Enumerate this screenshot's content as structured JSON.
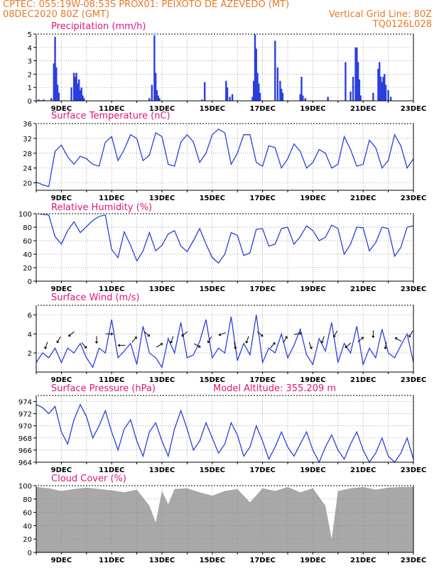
{
  "header": {
    "left_line1": "CPTEC:   055:19W-08:53S   PROX01: PEIXOTO DE AZEVEDO (MT)",
    "left_line2": "08DEC2020 80Z (GMT)",
    "right_line2": "Vertical Grid Line: 80Z",
    "right_line3": "TQ0126L028"
  },
  "colors": {
    "header": "#e8782a",
    "title": "#e0157a",
    "line": "#2b3fe0",
    "bar": "#2b3fe0",
    "cloud": "#a8a8a8",
    "grid": "#888888"
  },
  "chart_data": [
    {
      "type": "bar",
      "title": "Precipitation (mm/h)",
      "xlabel": "",
      "ylabel": "",
      "xlim": [
        "08DEC",
        "23DEC"
      ],
      "ylim": [
        0,
        5
      ],
      "yticks": [
        0,
        1,
        2,
        3,
        4,
        5
      ],
      "xticks": [
        "9DEC",
        "11DEC",
        "13DEC",
        "15DEC",
        "17DEC",
        "19DEC",
        "21DEC",
        "23DEC"
      ],
      "grid": true,
      "x_days": [
        8.1,
        8.2,
        8.3,
        8.6,
        8.7,
        8.75,
        8.8,
        8.85,
        8.9,
        9.4,
        9.5,
        9.55,
        9.6,
        9.65,
        9.7,
        9.75,
        9.8,
        9.85,
        9.9,
        12.5,
        12.6,
        12.7,
        12.75,
        12.8,
        12.85,
        12.9,
        14.6,
        14.7,
        15.55,
        15.6,
        15.7,
        15.8,
        16.6,
        16.65,
        16.7,
        16.75,
        16.8,
        16.85,
        16.9,
        17.5,
        17.6,
        17.7,
        17.75,
        17.8,
        18.5,
        18.55,
        18.6,
        18.7,
        19.6,
        20.3,
        20.5,
        20.6,
        20.7,
        20.75,
        20.8,
        20.85,
        20.9,
        21.4,
        21.6,
        21.65,
        21.7,
        21.75,
        21.8,
        21.85,
        21.9,
        22.0,
        22.1
      ],
      "values": [
        0.1,
        0.05,
        0.1,
        0.2,
        2.8,
        4.8,
        2.5,
        1.2,
        0.6,
        1.0,
        2.1,
        1.8,
        2.1,
        1.3,
        1.6,
        0.8,
        1.0,
        0.4,
        0.2,
        0.2,
        1.2,
        4.9,
        2.1,
        0.8,
        0.4,
        0.2,
        0.1,
        1.4,
        1.5,
        1.0,
        0.3,
        0.5,
        0.3,
        1.5,
        5.0,
        3.9,
        2.1,
        1.3,
        0.6,
        4.5,
        2.5,
        1.5,
        0.9,
        0.6,
        0.5,
        1.8,
        0.4,
        0.2,
        0.3,
        2.9,
        0.7,
        1.8,
        4.0,
        4.0,
        2.9,
        1.6,
        0.4,
        0.6,
        2.4,
        2.9,
        1.8,
        1.4,
        1.8,
        2.0,
        1.2,
        0.8,
        0.3
      ]
    },
    {
      "type": "line",
      "title": "Surface Temperature (nC)",
      "xlabel": "",
      "ylabel": "",
      "xlim": [
        "08DEC",
        "23DEC"
      ],
      "ylim": [
        18,
        36
      ],
      "yticks": [
        20,
        24,
        28,
        32,
        36
      ],
      "xticks": [
        "9DEC",
        "11DEC",
        "13DEC",
        "15DEC",
        "17DEC",
        "19DEC",
        "21DEC",
        "23DEC"
      ],
      "grid": true,
      "x_days": [
        8.0,
        8.25,
        8.5,
        8.75,
        9.0,
        9.25,
        9.5,
        9.75,
        10.0,
        10.25,
        10.5,
        10.75,
        11.0,
        11.25,
        11.5,
        11.75,
        12.0,
        12.25,
        12.5,
        12.75,
        13.0,
        13.25,
        13.5,
        13.75,
        14.0,
        14.25,
        14.5,
        14.75,
        15.0,
        15.25,
        15.5,
        15.75,
        16.0,
        16.25,
        16.5,
        16.75,
        17.0,
        17.25,
        17.5,
        17.75,
        18.0,
        18.25,
        18.5,
        18.75,
        19.0,
        19.25,
        19.5,
        19.75,
        20.0,
        20.25,
        20.5,
        20.75,
        21.0,
        21.25,
        21.5,
        21.75,
        22.0,
        22.25,
        22.5,
        22.75,
        23.0
      ],
      "series": [
        {
          "values": [
            20.2,
            19.5,
            19.0,
            28.5,
            30.2,
            27.0,
            25.0,
            27.2,
            26.5,
            25.0,
            24.5,
            31.0,
            32.5,
            26.0,
            29.0,
            33.0,
            32.0,
            26.0,
            27.5,
            33.5,
            32.5,
            25.0,
            24.5,
            31.0,
            33.0,
            31.0,
            25.5,
            28.0,
            33.0,
            34.5,
            33.5,
            25.0,
            28.0,
            33.0,
            33.0,
            25.5,
            24.5,
            30.0,
            29.5,
            24.0,
            26.5,
            30.5,
            28.5,
            24.0,
            25.5,
            29.0,
            28.0,
            24.0,
            25.0,
            32.5,
            29.0,
            24.5,
            25.0,
            31.5,
            29.5,
            24.0,
            26.0,
            33.0,
            30.0,
            24.0,
            26.5
          ]
        }
      ]
    },
    {
      "type": "line",
      "title": "Relative Humidity (%)",
      "xlabel": "",
      "ylabel": "",
      "xlim": [
        "08DEC",
        "23DEC"
      ],
      "ylim": [
        0,
        100
      ],
      "yticks": [
        0,
        20,
        40,
        60,
        80,
        100
      ],
      "xticks": [
        "9DEC",
        "11DEC",
        "13DEC",
        "15DEC",
        "17DEC",
        "19DEC",
        "21DEC",
        "23DEC"
      ],
      "grid": true,
      "x_days": [
        8.0,
        8.25,
        8.5,
        8.75,
        9.0,
        9.25,
        9.5,
        9.75,
        10.0,
        10.25,
        10.5,
        10.75,
        11.0,
        11.25,
        11.5,
        11.75,
        12.0,
        12.25,
        12.5,
        12.75,
        13.0,
        13.25,
        13.5,
        13.75,
        14.0,
        14.25,
        14.5,
        14.75,
        15.0,
        15.25,
        15.5,
        15.75,
        16.0,
        16.25,
        16.5,
        16.75,
        17.0,
        17.25,
        17.5,
        17.75,
        18.0,
        18.25,
        18.5,
        18.75,
        19.0,
        19.25,
        19.5,
        19.75,
        20.0,
        20.25,
        20.5,
        20.75,
        21.0,
        21.25,
        21.5,
        21.75,
        22.0,
        22.25,
        22.5,
        22.75,
        23.0
      ],
      "series": [
        {
          "values": [
            100,
            99,
            98,
            66,
            55,
            75,
            88,
            72,
            81,
            90,
            96,
            98,
            47,
            35,
            73,
            53,
            30,
            45,
            72,
            45,
            53,
            70,
            75,
            52,
            44,
            60,
            78,
            55,
            35,
            27,
            40,
            72,
            68,
            38,
            42,
            77,
            78,
            52,
            55,
            78,
            80,
            55,
            66,
            82,
            75,
            60,
            65,
            83,
            78,
            40,
            55,
            80,
            79,
            45,
            57,
            80,
            78,
            37,
            50,
            80,
            82
          ]
        }
      ]
    },
    {
      "type": "line",
      "title": "Surface Wind (m/s)",
      "xlabel": "",
      "ylabel": "",
      "xlim": [
        "08DEC",
        "23DEC"
      ],
      "ylim": [
        0,
        7
      ],
      "yticks": [
        2,
        4,
        6
      ],
      "xticks": [
        "9DEC",
        "11DEC",
        "13DEC",
        "15DEC",
        "17DEC",
        "19DEC",
        "21DEC",
        "23DEC"
      ],
      "grid": true,
      "x_days": [
        8.0,
        8.25,
        8.5,
        8.75,
        9.0,
        9.25,
        9.5,
        9.75,
        10.0,
        10.25,
        10.5,
        10.75,
        11.0,
        11.25,
        11.5,
        11.75,
        12.0,
        12.25,
        12.5,
        12.75,
        13.0,
        13.25,
        13.5,
        13.75,
        14.0,
        14.25,
        14.5,
        14.75,
        15.0,
        15.25,
        15.5,
        15.75,
        16.0,
        16.25,
        16.5,
        16.75,
        17.0,
        17.25,
        17.5,
        17.75,
        18.0,
        18.25,
        18.5,
        18.75,
        19.0,
        19.25,
        19.5,
        19.75,
        20.0,
        20.25,
        20.5,
        20.75,
        21.0,
        21.25,
        21.5,
        21.75,
        22.0,
        22.25,
        22.5,
        22.75,
        23.0
      ],
      "series": [
        {
          "values": [
            1.0,
            2.0,
            1.5,
            2.5,
            1.0,
            2.5,
            2.0,
            3.0,
            1.5,
            0.5,
            2.5,
            2.0,
            5.5,
            1.5,
            2.2,
            3.0,
            0.8,
            4.8,
            2.0,
            1.5,
            0.5,
            3.5,
            2.0,
            5.2,
            1.5,
            1.8,
            3.2,
            5.5,
            1.5,
            2.5,
            2.0,
            5.8,
            1.2,
            3.0,
            1.8,
            6.0,
            1.0,
            2.5,
            2.0,
            4.0,
            1.5,
            2.8,
            4.5,
            1.8,
            0.8,
            3.5,
            2.2,
            5.2,
            1.0,
            3.0,
            2.0,
            4.8,
            0.8,
            2.5,
            1.5,
            4.5,
            2.0,
            1.5,
            2.8,
            4.0,
            1.0
          ]
        }
      ],
      "wind_arrows_deg": [
        200,
        210,
        230,
        140,
        180,
        90,
        270,
        40,
        130,
        60,
        200,
        230,
        120,
        210,
        250,
        170,
        200,
        130,
        40,
        30,
        80,
        160,
        200,
        210,
        230,
        50,
        180,
        190,
        300,
        210
      ]
    },
    {
      "type": "line",
      "title": "Surface Pressure (hPa)",
      "annotation": "Model Altitude: 355.209 m",
      "xlabel": "",
      "ylabel": "",
      "xlim": [
        "08DEC",
        "23DEC"
      ],
      "ylim": [
        964,
        975
      ],
      "yticks": [
        964,
        966,
        968,
        970,
        972,
        974
      ],
      "xticks": [
        "9DEC",
        "11DEC",
        "13DEC",
        "15DEC",
        "17DEC",
        "19DEC",
        "21DEC",
        "23DEC"
      ],
      "grid": true,
      "x_days": [
        8.0,
        8.25,
        8.5,
        8.75,
        9.0,
        9.25,
        9.5,
        9.75,
        10.0,
        10.25,
        10.5,
        10.75,
        11.0,
        11.25,
        11.5,
        11.75,
        12.0,
        12.25,
        12.5,
        12.75,
        13.0,
        13.25,
        13.5,
        13.75,
        14.0,
        14.25,
        14.5,
        14.75,
        15.0,
        15.25,
        15.5,
        15.75,
        16.0,
        16.25,
        16.5,
        16.75,
        17.0,
        17.25,
        17.5,
        17.75,
        18.0,
        18.25,
        18.5,
        18.75,
        19.0,
        19.25,
        19.5,
        19.75,
        20.0,
        20.25,
        20.5,
        20.75,
        21.0,
        21.25,
        21.5,
        21.75,
        22.0,
        22.25,
        22.5,
        22.75,
        23.0
      ],
      "series": [
        {
          "values": [
            973.5,
            973.0,
            972.0,
            973.2,
            969.0,
            967.0,
            971.0,
            973.5,
            971.5,
            968.0,
            970.0,
            972.5,
            969.0,
            966.0,
            969.5,
            971.0,
            967.5,
            965.0,
            969.0,
            970.5,
            967.5,
            965.0,
            969.5,
            972.5,
            969.5,
            966.0,
            967.5,
            970.5,
            968.0,
            965.5,
            967.0,
            970.5,
            968.5,
            965.0,
            966.5,
            970.0,
            967.5,
            964.5,
            966.5,
            969.0,
            966.5,
            965.0,
            967.0,
            969.0,
            966.0,
            964.0,
            966.5,
            968.5,
            966.0,
            964.5,
            967.0,
            969.0,
            966.0,
            964.0,
            965.5,
            968.0,
            965.0,
            964.0,
            965.5,
            968.0,
            964.5
          ]
        }
      ]
    },
    {
      "type": "area",
      "title": "Cloud Cover (%)",
      "xlabel": "",
      "ylabel": "",
      "xlim": [
        "08DEC",
        "23DEC"
      ],
      "ylim": [
        0,
        100
      ],
      "yticks": [
        0,
        20,
        40,
        60,
        80,
        100
      ],
      "xticks": [
        "9DEC",
        "11DEC",
        "13DEC",
        "15DEC",
        "17DEC",
        "19DEC",
        "21DEC",
        "23DEC"
      ],
      "grid": true,
      "x_days": [
        8.0,
        8.5,
        9.0,
        9.5,
        10.0,
        10.5,
        11.0,
        11.5,
        12.0,
        12.5,
        12.75,
        13.0,
        13.25,
        13.5,
        14.0,
        14.5,
        15.0,
        15.5,
        16.0,
        16.5,
        17.0,
        17.5,
        18.0,
        18.5,
        19.0,
        19.5,
        19.75,
        20.0,
        20.5,
        21.0,
        21.5,
        22.0,
        22.5,
        23.0
      ],
      "series": [
        {
          "values": [
            98,
            96,
            92,
            95,
            97,
            95,
            93,
            90,
            94,
            70,
            45,
            92,
            72,
            95,
            96,
            90,
            85,
            92,
            95,
            75,
            96,
            92,
            98,
            90,
            96,
            70,
            20,
            92,
            96,
            98,
            94,
            97,
            98,
            98
          ]
        }
      ]
    }
  ]
}
